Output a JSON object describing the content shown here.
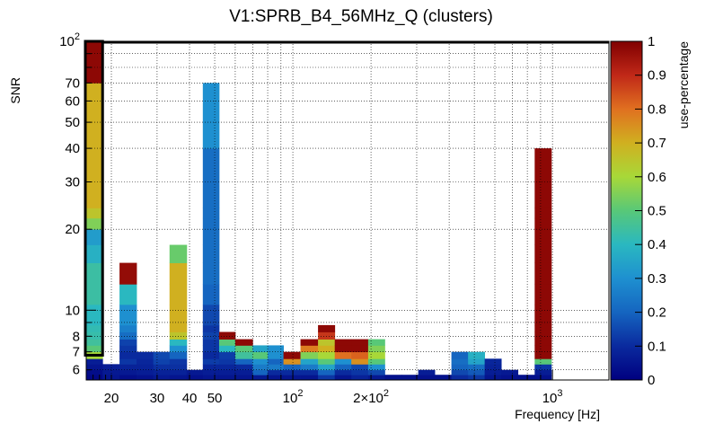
{
  "chart_data": {
    "type": "heatmap",
    "title": "V1:SPRB_B4_56MHz_Q (clusters)",
    "xlabel": "Frequency [Hz]",
    "ylabel": "SNR",
    "zlabel": "use-percentage",
    "x_scale": "log",
    "y_scale": "log",
    "xlim": [
      16,
      1650
    ],
    "ylim": [
      5.5,
      100
    ],
    "zlim": [
      0,
      1
    ],
    "x_ticks": [
      20,
      30,
      40,
      50,
      100,
      200,
      1000
    ],
    "x_tick_labels": [
      "20",
      "30",
      "40",
      "50",
      "10^2",
      "2×10^2",
      "10^3"
    ],
    "y_ticks": [
      6,
      7,
      8,
      10,
      20,
      30,
      40,
      50,
      60,
      70,
      100
    ],
    "y_tick_labels": [
      "6",
      "7",
      "8",
      "10",
      "20",
      "30",
      "40",
      "50",
      "60",
      "70",
      "10^2"
    ],
    "z_ticks": [
      0,
      0.1,
      0.2,
      0.3,
      0.4,
      0.5,
      0.6,
      0.7,
      0.8,
      0.9,
      1
    ],
    "z_tick_labels": [
      "0",
      "0.1",
      "0.2",
      "0.3",
      "0.4",
      "0.5",
      "0.6",
      "0.7",
      "0.8",
      "0.9",
      "1"
    ],
    "gridlines": true,
    "snr_edges": [
      5.5,
      5.75,
      6.0,
      6.3,
      6.6,
      7.0,
      7.4,
      7.8,
      8.3,
      8.8,
      10.5,
      12.5,
      15.0,
      17.5,
      20.0,
      22.0,
      24.0,
      30.0,
      40.0,
      70.0,
      100.0
    ],
    "columns": [
      {
        "f0": 16,
        "f1": 18.5,
        "z": [
          0.02,
          0.03,
          0.05,
          0.07,
          0.6,
          0.5,
          0.45,
          0.43,
          0.42,
          0.4,
          0.44,
          0.44,
          0.38,
          0.33,
          0.55,
          0.65,
          0.7,
          0.7,
          0.7,
          0.98
        ]
      },
      {
        "f0": 18.5,
        "f1": 21.5,
        "z": [
          0.05,
          0.06,
          0.07
        ]
      },
      {
        "f0": 21.5,
        "f1": 25,
        "z": [
          0.03,
          0.06,
          0.08,
          0.12,
          0.1,
          0.12,
          0.14,
          0.22,
          0.26,
          0.3,
          0.4,
          0.97
        ]
      },
      {
        "f0": 25,
        "f1": 29,
        "z": [
          0.04,
          0.07,
          0.08,
          0.09,
          0.1
        ]
      },
      {
        "f0": 29,
        "f1": 33.5,
        "z": [
          0.06,
          0.08,
          0.11,
          0.14,
          0.15
        ]
      },
      {
        "f0": 33.5,
        "f1": 39,
        "z": [
          0.05,
          0.08,
          0.11,
          0.12,
          0.2,
          0.3,
          0.4,
          0.65,
          0.7,
          0.7,
          0.7,
          0.7,
          0.52
        ]
      },
      {
        "f0": 39,
        "f1": 45,
        "z": [
          0.04,
          0.06
        ]
      },
      {
        "f0": 45,
        "f1": 52,
        "z": [
          0.05,
          0.07,
          0.09,
          0.13,
          0.1,
          0.12,
          0.12,
          0.14,
          0.12,
          0.15,
          0.2,
          0.22,
          0.22,
          0.22,
          0.22,
          0.22,
          0.22,
          0.22,
          0.3
        ]
      },
      {
        "f0": 52,
        "f1": 60,
        "z": [
          0.05,
          0.07,
          0.09,
          0.12,
          0.13,
          0.4,
          0.5,
          0.98
        ]
      },
      {
        "f0": 60,
        "f1": 70,
        "z": [
          0.05,
          0.07,
          0.1,
          0.2,
          0.45,
          0.5,
          0.98
        ]
      },
      {
        "f0": 70,
        "f1": 80,
        "z": [
          0.06,
          0.2,
          0.25,
          0.3,
          0.5,
          0.35
        ]
      },
      {
        "f0": 80,
        "f1": 92,
        "z": [
          0.05,
          0.1,
          0.25,
          0.2,
          0.3,
          0.3
        ]
      },
      {
        "f0": 92,
        "f1": 107,
        "z": [
          0.05,
          0.1,
          0.2,
          0.75,
          0.98
        ]
      },
      {
        "f0": 107,
        "f1": 125,
        "z": [
          0.05,
          0.1,
          0.25,
          0.35,
          0.55,
          0.78,
          0.98
        ]
      },
      {
        "f0": 125,
        "f1": 145,
        "z": [
          0.12,
          0.2,
          0.35,
          0.5,
          0.6,
          0.7,
          0.65,
          0.88,
          0.98
        ]
      },
      {
        "f0": 145,
        "f1": 168,
        "z": [
          0.05,
          0.1,
          0.2,
          0.3,
          0.8,
          0.98,
          0.98
        ]
      },
      {
        "f0": 168,
        "f1": 195,
        "z": [
          0.08,
          0.12,
          0.15,
          0.75,
          0.82,
          0.98,
          0.98
        ]
      },
      {
        "f0": 195,
        "f1": 226,
        "z": [
          0.06,
          0.15,
          0.3,
          0.5,
          0.6,
          0.55,
          0.5
        ]
      },
      {
        "f0": 226,
        "f1": 262,
        "z": [
          0.04
        ]
      },
      {
        "f0": 262,
        "f1": 304,
        "z": [
          0.04
        ]
      },
      {
        "f0": 304,
        "f1": 352,
        "z": [
          0.04,
          0.07
        ]
      },
      {
        "f0": 352,
        "f1": 408,
        "z": [
          0.04
        ]
      },
      {
        "f0": 408,
        "f1": 473,
        "z": [
          0.1,
          0.15,
          0.2,
          0.22,
          0.2
        ]
      },
      {
        "f0": 473,
        "f1": 548,
        "z": [
          0.12,
          0.18,
          0.22,
          0.35,
          0.38
        ]
      },
      {
        "f0": 548,
        "f1": 635,
        "z": [
          0.05,
          0.07,
          0.08,
          0.09
        ]
      },
      {
        "f0": 635,
        "f1": 736,
        "z": [
          0.04,
          0.06
        ]
      },
      {
        "f0": 736,
        "f1": 854,
        "z": [
          0.04
        ]
      },
      {
        "f0": 854,
        "f1": 990,
        "z": [
          0.04,
          0.07,
          0.12,
          0.5,
          0.98,
          0.98,
          0.98,
          0.98,
          0.98,
          0.98,
          0.98,
          0.98,
          0.98,
          0.98,
          0.98,
          0.98,
          0.98,
          0.98
        ]
      }
    ],
    "rectangle": {
      "f0": 16,
      "f1": 18.5,
      "snr0": 6.8,
      "snr1": 100
    }
  }
}
